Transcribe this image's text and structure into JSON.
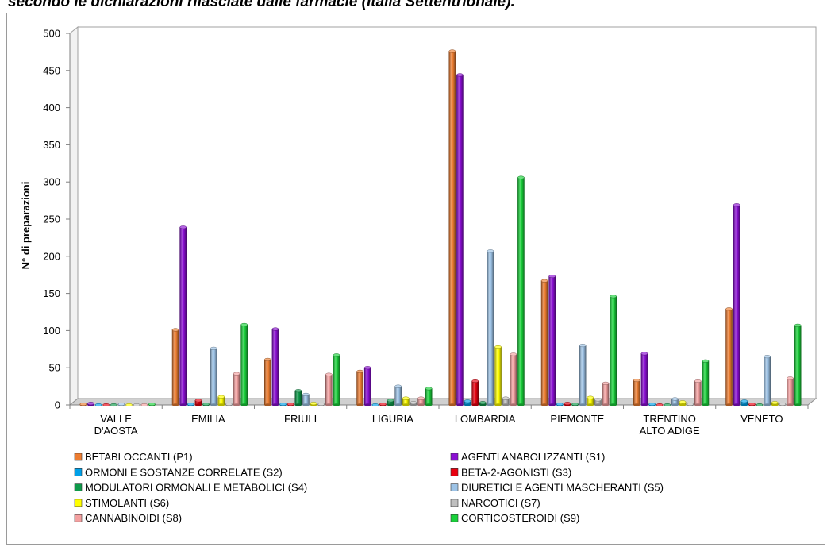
{
  "title": "secondo le dichiarazioni rilasciate dalle farmacie (Italia Settentrionale).",
  "chart_data": {
    "type": "bar",
    "ylabel": "N° di preparazioni",
    "xlabel": "",
    "ylim": [
      0,
      500
    ],
    "yticks": [
      0,
      50,
      100,
      150,
      200,
      250,
      300,
      350,
      400,
      450,
      500
    ],
    "grid": false,
    "legend_position": "bottom",
    "categories": [
      [
        "VALLE",
        "D'AOSTA"
      ],
      [
        "EMILIA"
      ],
      [
        "FRIULI"
      ],
      [
        "LIGURIA"
      ],
      [
        "LOMBARDIA"
      ],
      [
        "PIEMONTE"
      ],
      [
        "TRENTINO",
        "ALTO ADIGE"
      ],
      [
        "VENETO"
      ]
    ],
    "series": [
      {
        "name": "BETABLOCCANTI (P1)",
        "color": "#ED7D31",
        "values": [
          1,
          101,
          61,
          45,
          476,
          167,
          33,
          129
        ]
      },
      {
        "name": "AGENTI ANABOLIZZANTI (S1)",
        "color": "#8B0FD3",
        "values": [
          2,
          239,
          102,
          50,
          444,
          173,
          69,
          269
        ]
      },
      {
        "name": "ORMONI E SOSTANZE CORRELATE (S2)",
        "color": "#00A0E8",
        "values": [
          0,
          1,
          1,
          0,
          5,
          1,
          1,
          5
        ]
      },
      {
        "name": "BETA-2-AGONISTI (S3)",
        "color": "#E8000F",
        "values": [
          0,
          6,
          1,
          1,
          32,
          2,
          0,
          1
        ]
      },
      {
        "name": "MODULATORI ORMONALI E METABOLICI (S4)",
        "color": "#0E9A4A",
        "values": [
          0,
          1,
          19,
          6,
          3,
          1,
          0,
          0
        ]
      },
      {
        "name": "DIURETICI E AGENTI MASCHERANTI (S5)",
        "color": "#9DC3E6",
        "values": [
          1,
          76,
          14,
          25,
          207,
          80,
          8,
          65
        ]
      },
      {
        "name": "STIMOLANTI (S6)",
        "color": "#FFFF00",
        "values": [
          0,
          11,
          2,
          9,
          78,
          10,
          4,
          3
        ]
      },
      {
        "name": "NARCOTICI (S7)",
        "color": "#BFBFBF",
        "values": [
          0,
          1,
          1,
          3,
          9,
          7,
          1,
          1
        ]
      },
      {
        "name": "CANNABINOIDI (S8)",
        "color": "#F4A0A0",
        "values": [
          0,
          42,
          41,
          9,
          68,
          29,
          32,
          36
        ]
      },
      {
        "name": "CORTICOSTEROIDI (S9)",
        "color": "#19D13A",
        "values": [
          1,
          108,
          67,
          22,
          306,
          146,
          59,
          107
        ]
      }
    ]
  }
}
